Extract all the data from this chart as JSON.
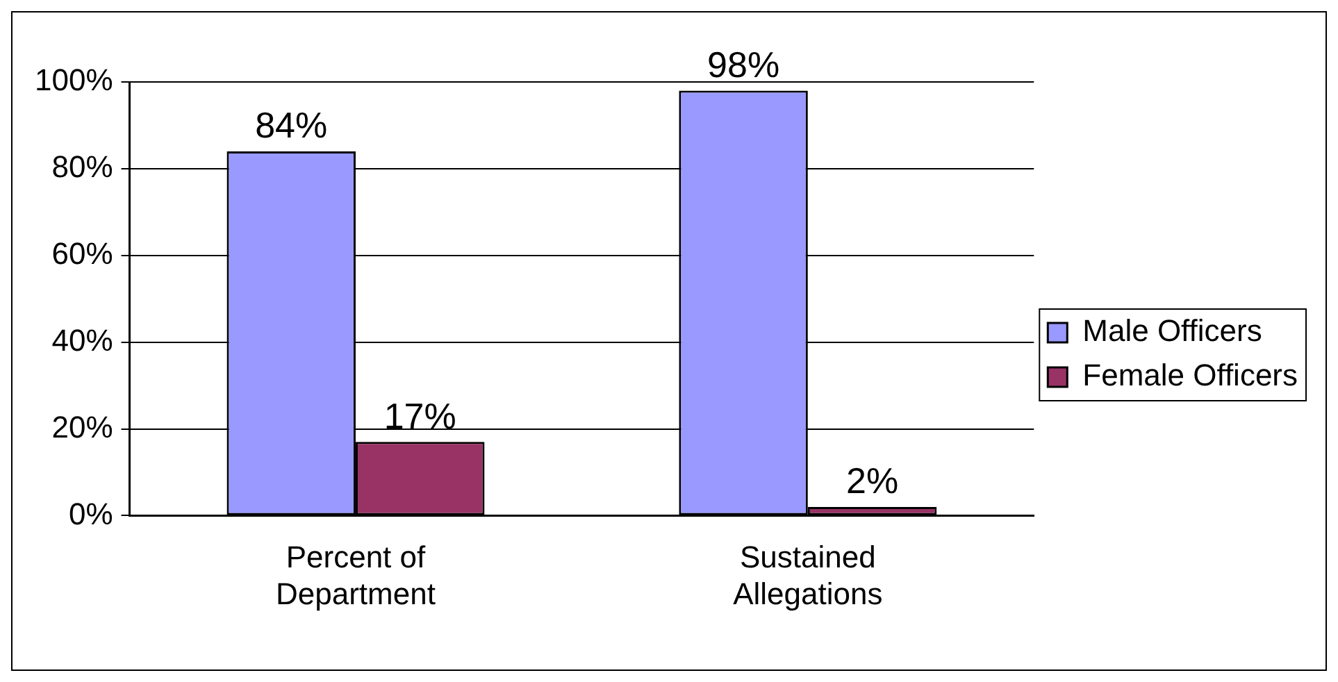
{
  "chart_data": {
    "type": "bar",
    "categories": [
      "Percent of Department",
      "Sustained Allegations"
    ],
    "series": [
      {
        "name": "Male Officers",
        "color": "#9999ff",
        "values": [
          84,
          98
        ],
        "value_labels": [
          "84%",
          "98%"
        ]
      },
      {
        "name": "Female Officers",
        "color": "#993366",
        "values": [
          17,
          2
        ],
        "value_labels": [
          "17%",
          "2%"
        ]
      }
    ],
    "ylim": [
      0,
      100
    ],
    "yticks": [
      {
        "value": 0,
        "label": "0%"
      },
      {
        "value": 20,
        "label": "20%"
      },
      {
        "value": 40,
        "label": "40%"
      },
      {
        "value": 60,
        "label": "60%"
      },
      {
        "value": 80,
        "label": "80%"
      },
      {
        "value": 100,
        "label": "100%"
      }
    ],
    "grid": "y",
    "legend": "right"
  }
}
